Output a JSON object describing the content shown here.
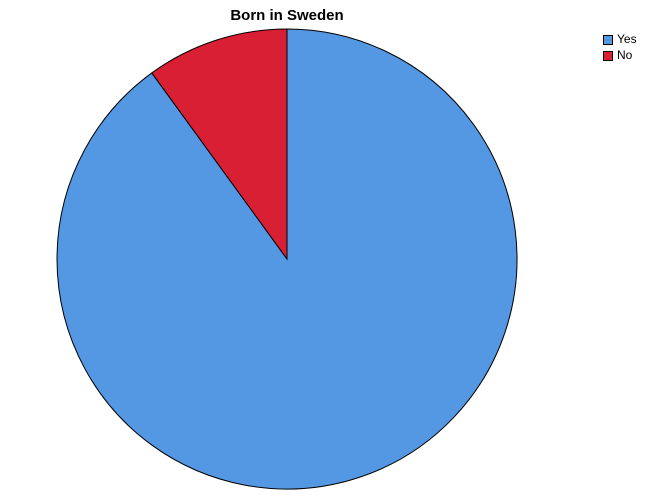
{
  "chart_data": {
    "type": "pie",
    "title": "Born in Sweden",
    "legend_position": "top-right",
    "series": [
      {
        "name": "",
        "slices": [
          {
            "label": "Yes",
            "value": 0.9,
            "color": "#5497e3"
          },
          {
            "label": "No",
            "value": 0.1,
            "color": "#d81f34"
          }
        ]
      }
    ]
  }
}
